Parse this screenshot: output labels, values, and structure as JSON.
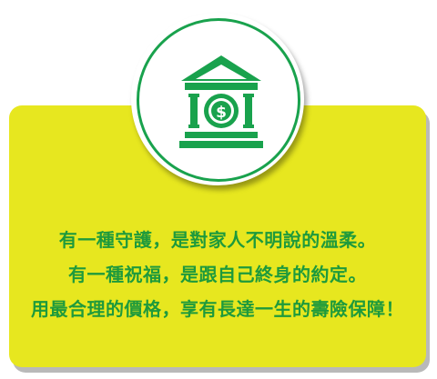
{
  "icon": {
    "name": "bank-dollar-icon",
    "color": "#19a24d",
    "symbol": "$"
  },
  "colors": {
    "card_background": "#e7e71f",
    "text": "#1e9a3c",
    "ring": "#19a24d"
  },
  "lines": [
    "有一種守護，是對家人不明說的溫柔。",
    "有一種祝福，是跟自己終身的約定。",
    "用最合理的價格，享有長達一生的壽險保障！"
  ]
}
